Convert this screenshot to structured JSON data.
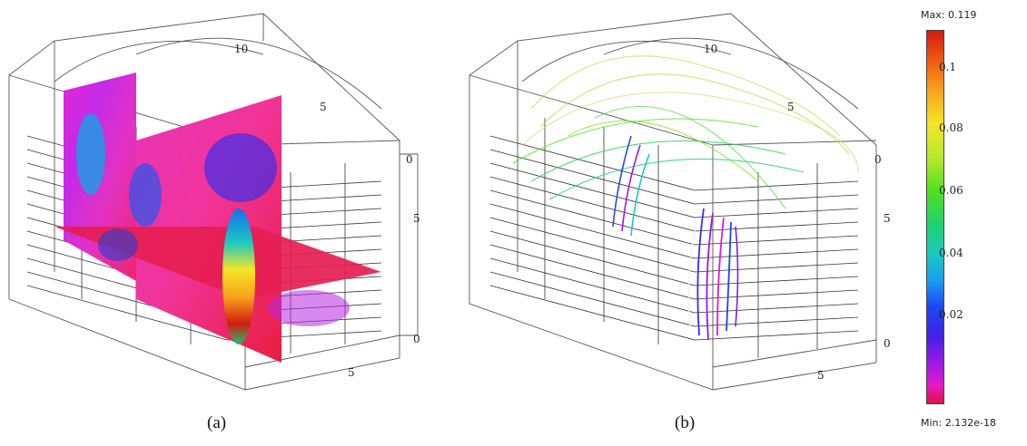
{
  "panels": [
    {
      "caption": "(a)",
      "axis_ticks": {
        "top": "10",
        "top_mid": "5",
        "right_top": "0",
        "right_mid": "5",
        "right_bottom": "0",
        "bottom": "5"
      }
    },
    {
      "caption": "(b)",
      "axis_ticks": {
        "top": "10",
        "top_mid": "5",
        "right_top": "0",
        "right_mid": "5",
        "right_bottom": "0",
        "bottom": "5"
      }
    }
  ],
  "colorbar": {
    "max_label": "Max: 0.119",
    "min_label": "Min: 2.132e-18",
    "ticks": [
      "0.1",
      "0.08",
      "0.06",
      "0.04",
      "0.02"
    ],
    "colors": [
      "#d01b10",
      "#f7a21c",
      "#f4e628",
      "#4fe020",
      "#19c9c0",
      "#1c48f3",
      "#9b19e6",
      "#e31acb",
      "#e01240"
    ]
  }
}
